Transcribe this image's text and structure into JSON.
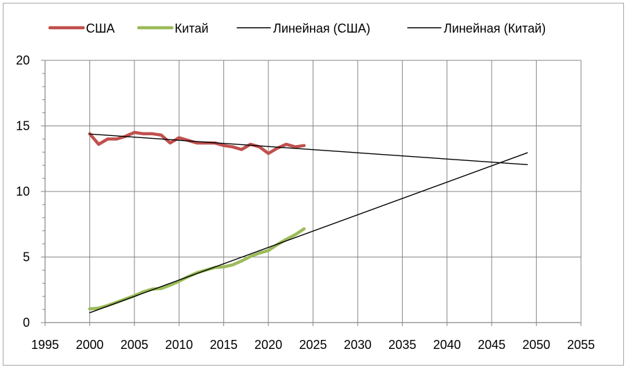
{
  "chart_data": {
    "type": "line",
    "title": "",
    "xlabel": "",
    "ylabel": "",
    "xlim": [
      1995,
      2055
    ],
    "ylim": [
      0,
      20
    ],
    "x_ticks": [
      1995,
      2000,
      2005,
      2010,
      2015,
      2020,
      2025,
      2030,
      2035,
      2040,
      2045,
      2050,
      2055
    ],
    "y_ticks": [
      0,
      5,
      10,
      15,
      20
    ],
    "grid": true,
    "legend_position": "top",
    "series": [
      {
        "name": "США",
        "color": "#c0504d",
        "style": "thick",
        "x": [
          2000,
          2001,
          2002,
          2003,
          2004,
          2005,
          2006,
          2007,
          2008,
          2009,
          2010,
          2011,
          2012,
          2013,
          2014,
          2015,
          2016,
          2017,
          2018,
          2019,
          2020,
          2021,
          2022,
          2023,
          2024
        ],
        "y": [
          14.4,
          13.6,
          14.0,
          14.0,
          14.2,
          14.5,
          14.4,
          14.4,
          14.3,
          13.7,
          14.1,
          13.9,
          13.7,
          13.7,
          13.7,
          13.5,
          13.4,
          13.2,
          13.6,
          13.4,
          12.9,
          13.3,
          13.6,
          13.4,
          13.5
        ]
      },
      {
        "name": "Китай",
        "color": "#9bbb59",
        "style": "thick",
        "x": [
          2000,
          2001,
          2002,
          2003,
          2004,
          2005,
          2006,
          2007,
          2008,
          2009,
          2010,
          2011,
          2012,
          2013,
          2014,
          2015,
          2016,
          2017,
          2018,
          2019,
          2020,
          2021,
          2022,
          2023,
          2024
        ],
        "y": [
          1.05,
          1.1,
          1.3,
          1.55,
          1.8,
          2.05,
          2.35,
          2.55,
          2.6,
          2.85,
          3.15,
          3.5,
          3.8,
          4.0,
          4.2,
          4.25,
          4.4,
          4.7,
          5.05,
          5.3,
          5.5,
          5.95,
          6.35,
          6.7,
          7.15
        ]
      },
      {
        "name": "Линейная (США)",
        "color": "#000000",
        "style": "thin",
        "x": [
          2000,
          2049
        ],
        "y": [
          14.38,
          12.05
        ]
      },
      {
        "name": "Линейная (Китай)",
        "color": "#000000",
        "style": "thin",
        "x": [
          2000,
          2049
        ],
        "y": [
          0.75,
          12.95
        ]
      }
    ]
  }
}
